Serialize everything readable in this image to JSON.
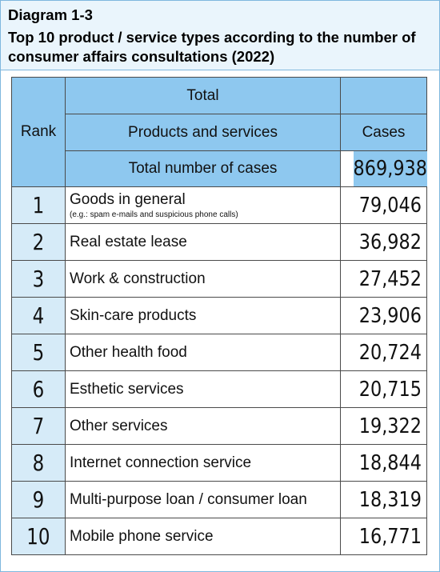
{
  "header": {
    "diagram_label": "Diagram 1-3",
    "title": "Top 10 product / service types according to the number of consumer affairs consultations (2022)"
  },
  "chart_data": {
    "type": "table",
    "title": "Top 10 product / service types according to the number of consumer affairs consultations (2022)",
    "columns": {
      "group": "Total",
      "rank": "Rank",
      "product": "Products and services",
      "cases": "Cases"
    },
    "total": {
      "label": "Total number of cases",
      "value": "869,938"
    },
    "rows": [
      {
        "rank": "1",
        "name": "Goods in general",
        "note": "(e.g.: spam e-mails and suspicious phone calls)",
        "cases": "79,046"
      },
      {
        "rank": "2",
        "name": "Real estate lease",
        "note": "",
        "cases": "36,982"
      },
      {
        "rank": "3",
        "name": "Work & construction",
        "note": "",
        "cases": "27,452"
      },
      {
        "rank": "4",
        "name": "Skin-care products",
        "note": "",
        "cases": "23,906"
      },
      {
        "rank": "5",
        "name": "Other health food",
        "note": "",
        "cases": "20,724"
      },
      {
        "rank": "6",
        "name": "Esthetic services",
        "note": "",
        "cases": "20,715"
      },
      {
        "rank": "7",
        "name": "Other services",
        "note": "",
        "cases": "19,322"
      },
      {
        "rank": "8",
        "name": "Internet connection service",
        "note": "",
        "cases": "18,844"
      },
      {
        "rank": "9",
        "name": "Multi-purpose loan / consumer loan",
        "note": "",
        "cases": "18,319"
      },
      {
        "rank": "10",
        "name": "Mobile phone service",
        "note": "",
        "cases": "16,771"
      }
    ]
  },
  "colors": {
    "header_bg": "#eaf5fc",
    "table_header_bg": "#8ec8ef",
    "rank_cell_bg": "#d6ebf8",
    "border": "#4a4a4a",
    "frame_border": "#7fb7de"
  }
}
